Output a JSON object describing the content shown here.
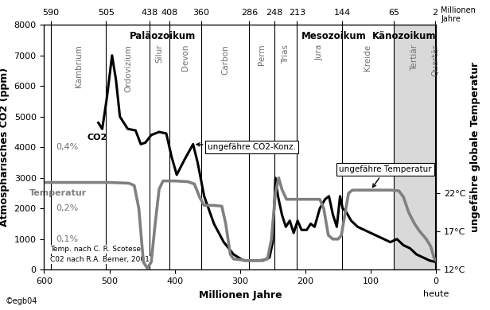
{
  "chart_data": {
    "type": "line",
    "x_label": "Millionen Jahre",
    "y_label": "Atmosphärisches CO2 (ppm)",
    "y2_label": "ungefähre globale Temperatur",
    "xlim": [
      600,
      0
    ],
    "xticks": [
      600,
      500,
      400,
      300,
      200,
      100,
      0
    ],
    "ylim": [
      0,
      8000
    ],
    "yticks": [
      0,
      1000,
      2000,
      3000,
      4000,
      5000,
      6000,
      7000,
      8000
    ],
    "y2lim": [
      12,
      44
    ],
    "y2ticks": [
      {
        "value": 12,
        "label": "12°C"
      },
      {
        "value": 17,
        "label": "17°C"
      },
      {
        "value": 22,
        "label": "22°C"
      }
    ],
    "top_axis": {
      "label": "Millionen Jahre",
      "ticks": [
        590,
        505,
        438,
        408,
        360,
        286,
        248,
        213,
        144,
        65,
        2
      ]
    },
    "eras": [
      {
        "name": "Paläozoikum",
        "start": 590,
        "end": 248
      },
      {
        "name": "Mesozoikum",
        "start": 248,
        "end": 65
      },
      {
        "name": "Känozoikum",
        "start": 65,
        "end": 0
      }
    ],
    "periods": [
      {
        "name": "Kambrium",
        "start": 590,
        "end": 505
      },
      {
        "name": "Ordovizium",
        "start": 505,
        "end": 438
      },
      {
        "name": "Silur",
        "start": 438,
        "end": 408
      },
      {
        "name": "Devon",
        "start": 408,
        "end": 360
      },
      {
        "name": "Carbon",
        "start": 360,
        "end": 286
      },
      {
        "name": "Perm",
        "start": 286,
        "end": 248
      },
      {
        "name": "Trias",
        "start": 248,
        "end": 213
      },
      {
        "name": "Jura",
        "start": 213,
        "end": 144
      },
      {
        "name": "Kreide",
        "start": 144,
        "end": 65
      },
      {
        "name": "Tertiär",
        "start": 65,
        "end": 2
      },
      {
        "name": "Quartär",
        "start": 2,
        "end": 0
      }
    ],
    "series": [
      {
        "name": "CO2",
        "color": "#000000",
        "x": [
          517,
          511,
          504,
          496,
          490,
          484,
          472,
          460,
          452,
          445,
          436,
          424,
          413,
          405,
          397,
          385,
          372,
          365,
          355,
          340,
          325,
          310,
          295,
          280,
          265,
          255,
          250,
          246,
          242,
          236,
          230,
          224,
          218,
          212,
          206,
          198,
          192,
          186,
          178,
          170,
          164,
          158,
          152,
          147,
          143,
          138,
          130,
          120,
          110,
          100,
          90,
          80,
          70,
          60,
          50,
          40,
          30,
          20,
          10,
          0
        ],
        "values": [
          4800,
          4600,
          5600,
          7000,
          6200,
          5000,
          4600,
          4550,
          4100,
          4150,
          4400,
          4500,
          4450,
          3700,
          3100,
          3600,
          4100,
          3500,
          2400,
          1500,
          900,
          500,
          300,
          300,
          300,
          400,
          900,
          3000,
          2400,
          1800,
          1400,
          1600,
          1200,
          1600,
          1300,
          1300,
          1500,
          1400,
          2000,
          2300,
          2400,
          1800,
          1400,
          2400,
          2000,
          1900,
          1600,
          1400,
          1300,
          1200,
          1100,
          1000,
          900,
          1000,
          800,
          700,
          500,
          400,
          300,
          250
        ]
      },
      {
        "name": "Temperatur",
        "color": "#808080",
        "axis": "y2",
        "x": [
          600,
          550,
          500,
          470,
          462,
          455,
          448,
          442,
          436,
          430,
          424,
          418,
          400,
          380,
          370,
          362,
          355,
          340,
          328,
          322,
          315,
          310,
          290,
          270,
          258,
          252,
          246,
          241,
          236,
          229,
          200,
          178,
          172,
          165,
          158,
          150,
          145,
          140,
          134,
          128,
          100,
          70,
          57,
          50,
          42,
          33,
          25,
          15,
          8,
          3,
          0
        ],
        "values": [
          23.4,
          23.4,
          23.4,
          23.3,
          23.0,
          20,
          13,
          12.2,
          13,
          18,
          22.5,
          23.6,
          23.6,
          23.5,
          23.2,
          21.5,
          20.4,
          20.4,
          20.3,
          18,
          14,
          13.4,
          13.2,
          13.2,
          13.4,
          16,
          22,
          24,
          22.5,
          21.2,
          21.2,
          21.2,
          20,
          16.5,
          16,
          16,
          16.5,
          19,
          22,
          22.4,
          22.4,
          22.4,
          22.3,
          21.5,
          19.5,
          18,
          17,
          16,
          15,
          13.5,
          13.2
        ]
      }
    ],
    "annotations": [
      "ungefähre CO2-Konz.",
      "ungefähre Temperatur"
    ],
    "percent_marks": [
      {
        "value": 4000,
        "label": "0,4%"
      },
      {
        "value": 2000,
        "label": "0,2%"
      },
      {
        "value": 1000,
        "label": "0,1%"
      }
    ],
    "credits": [
      "Temp. nach C. R. Scotese",
      "C02 nach R.A. Berner, 2001"
    ],
    "copyright": "©egb04",
    "now_label": "heute"
  }
}
